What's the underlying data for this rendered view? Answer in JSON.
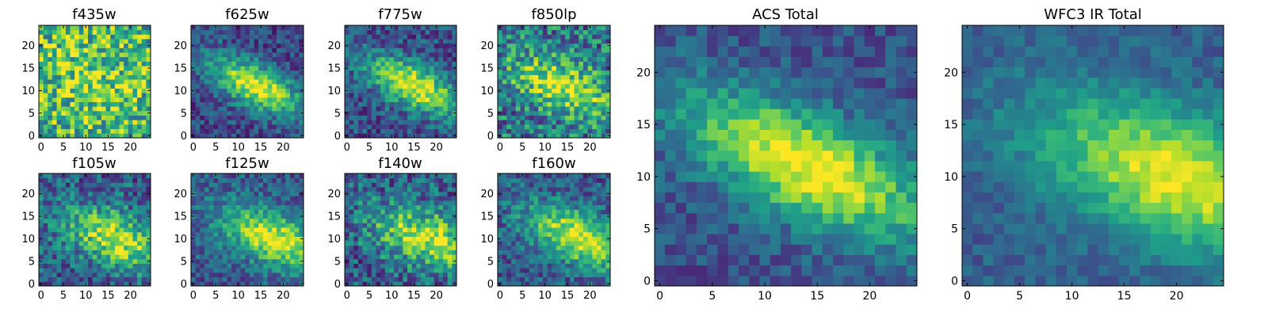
{
  "figure": {
    "colormap": "viridis",
    "colors": {
      "low": "#440154",
      "mid": "#21918c",
      "high": "#fde725",
      "axis": "#000000",
      "background": "#ffffff"
    }
  },
  "chart_data": [
    {
      "type": "heatmap",
      "title": "f435w",
      "grid": false,
      "xlabel": "",
      "ylabel": "",
      "xlim": [
        -0.5,
        24.5
      ],
      "ylim": [
        -0.5,
        24.5
      ],
      "xticks": [
        0,
        5,
        10,
        15,
        20
      ],
      "yticks": [
        0,
        5,
        10,
        15,
        20
      ],
      "xtick_labels": [
        "0",
        "5",
        "10",
        "15",
        "20"
      ],
      "ytick_labels": [
        "0",
        "5",
        "10",
        "15",
        "20"
      ],
      "grid_size": [
        25,
        25
      ],
      "value_range": [
        0,
        1
      ],
      "model": {
        "peak": [
          12,
          12
        ],
        "sigma_major": 9.0,
        "sigma_minor": 7.0,
        "angle_deg": -15,
        "base": 0.62,
        "amplitude": 0.18,
        "noise": 0.34,
        "seed": 11
      },
      "values": []
    },
    {
      "type": "heatmap",
      "title": "f625w",
      "grid": false,
      "xlabel": "",
      "ylabel": "",
      "xlim": [
        -0.5,
        24.5
      ],
      "ylim": [
        -0.5,
        24.5
      ],
      "xticks": [
        0,
        5,
        10,
        15,
        20
      ],
      "yticks": [
        0,
        5,
        10,
        15,
        20
      ],
      "xtick_labels": [
        "0",
        "5",
        "10",
        "15",
        "20"
      ],
      "ytick_labels": [
        "0",
        "5",
        "10",
        "15",
        "20"
      ],
      "grid_size": [
        25,
        25
      ],
      "value_range": [
        0,
        1
      ],
      "model": {
        "peak": [
          14,
          11
        ],
        "sigma_major": 8.0,
        "sigma_minor": 3.2,
        "angle_deg": -26,
        "base": 0.22,
        "amplitude": 0.75,
        "noise": 0.18,
        "seed": 23
      },
      "values": []
    },
    {
      "type": "heatmap",
      "title": "f775w",
      "grid": false,
      "xlabel": "",
      "ylabel": "",
      "xlim": [
        -0.5,
        24.5
      ],
      "ylim": [
        -0.5,
        24.5
      ],
      "xticks": [
        0,
        5,
        10,
        15,
        20
      ],
      "yticks": [
        0,
        5,
        10,
        15,
        20
      ],
      "xtick_labels": [
        "0",
        "5",
        "10",
        "15",
        "20"
      ],
      "ytick_labels": [
        "0",
        "5",
        "10",
        "15",
        "20"
      ],
      "grid_size": [
        25,
        25
      ],
      "value_range": [
        0,
        1
      ],
      "model": {
        "peak": [
          15,
          11
        ],
        "sigma_major": 8.0,
        "sigma_minor": 3.2,
        "angle_deg": -26,
        "base": 0.25,
        "amplitude": 0.72,
        "noise": 0.2,
        "seed": 37
      },
      "values": []
    },
    {
      "type": "heatmap",
      "title": "f850lp",
      "grid": false,
      "xlabel": "",
      "ylabel": "",
      "xlim": [
        -0.5,
        24.5
      ],
      "ylim": [
        -0.5,
        24.5
      ],
      "xticks": [
        0,
        5,
        10,
        15,
        20
      ],
      "yticks": [
        0,
        5,
        10,
        15,
        20
      ],
      "xtick_labels": [
        "0",
        "5",
        "10",
        "15",
        "20"
      ],
      "ytick_labels": [
        "0",
        "5",
        "10",
        "15",
        "20"
      ],
      "grid_size": [
        25,
        25
      ],
      "value_range": [
        0,
        1
      ],
      "model": {
        "peak": [
          14,
          11
        ],
        "sigma_major": 8.0,
        "sigma_minor": 3.6,
        "angle_deg": -22,
        "base": 0.4,
        "amplitude": 0.55,
        "noise": 0.3,
        "seed": 41
      },
      "values": []
    },
    {
      "type": "heatmap",
      "title": "f105w",
      "grid": false,
      "xlabel": "",
      "ylabel": "",
      "xlim": [
        -0.5,
        24.5
      ],
      "ylim": [
        -0.5,
        24.5
      ],
      "xticks": [
        0,
        5,
        10,
        15,
        20
      ],
      "yticks": [
        0,
        5,
        10,
        15,
        20
      ],
      "xtick_labels": [
        "0",
        "5",
        "10",
        "15",
        "20"
      ],
      "ytick_labels": [
        "0",
        "5",
        "10",
        "15",
        "20"
      ],
      "grid_size": [
        25,
        25
      ],
      "value_range": [
        0,
        1
      ],
      "model": {
        "peak": [
          17,
          10
        ],
        "sigma_major": 8.5,
        "sigma_minor": 4.0,
        "angle_deg": -20,
        "base": 0.3,
        "amplitude": 0.62,
        "noise": 0.24,
        "seed": 53
      },
      "values": []
    },
    {
      "type": "heatmap",
      "title": "f125w",
      "grid": false,
      "xlabel": "",
      "ylabel": "",
      "xlim": [
        -0.5,
        24.5
      ],
      "ylim": [
        -0.5,
        24.5
      ],
      "xticks": [
        0,
        5,
        10,
        15,
        20
      ],
      "yticks": [
        0,
        5,
        10,
        15,
        20
      ],
      "xtick_labels": [
        "0",
        "5",
        "10",
        "15",
        "20"
      ],
      "ytick_labels": [
        "0",
        "5",
        "10",
        "15",
        "20"
      ],
      "grid_size": [
        25,
        25
      ],
      "value_range": [
        0,
        1
      ],
      "model": {
        "peak": [
          18,
          10
        ],
        "sigma_major": 9.0,
        "sigma_minor": 3.8,
        "angle_deg": -22,
        "base": 0.28,
        "amplitude": 0.68,
        "noise": 0.18,
        "seed": 67
      },
      "values": []
    },
    {
      "type": "heatmap",
      "title": "f140w",
      "grid": false,
      "xlabel": "",
      "ylabel": "",
      "xlim": [
        -0.5,
        24.5
      ],
      "ylim": [
        -0.5,
        24.5
      ],
      "xticks": [
        0,
        5,
        10,
        15,
        20
      ],
      "yticks": [
        0,
        5,
        10,
        15,
        20
      ],
      "xtick_labels": [
        "0",
        "5",
        "10",
        "15",
        "20"
      ],
      "ytick_labels": [
        "0",
        "5",
        "10",
        "15",
        "20"
      ],
      "grid_size": [
        25,
        25
      ],
      "value_range": [
        0,
        1
      ],
      "model": {
        "peak": [
          18,
          10
        ],
        "sigma_major": 9.0,
        "sigma_minor": 4.0,
        "angle_deg": -18,
        "base": 0.3,
        "amplitude": 0.62,
        "noise": 0.26,
        "seed": 79
      },
      "values": []
    },
    {
      "type": "heatmap",
      "title": "f160w",
      "grid": false,
      "xlabel": "",
      "ylabel": "",
      "xlim": [
        -0.5,
        24.5
      ],
      "ylim": [
        -0.5,
        24.5
      ],
      "xticks": [
        0,
        5,
        10,
        15,
        20
      ],
      "yticks": [
        0,
        5,
        10,
        15,
        20
      ],
      "xtick_labels": [
        "0",
        "5",
        "10",
        "15",
        "20"
      ],
      "ytick_labels": [
        "0",
        "5",
        "10",
        "15",
        "20"
      ],
      "grid_size": [
        25,
        25
      ],
      "value_range": [
        0,
        1
      ],
      "model": {
        "peak": [
          18,
          10
        ],
        "sigma_major": 9.0,
        "sigma_minor": 3.8,
        "angle_deg": -24,
        "base": 0.28,
        "amplitude": 0.7,
        "noise": 0.2,
        "seed": 83
      },
      "values": []
    },
    {
      "type": "heatmap",
      "title": "ACS Total",
      "grid": false,
      "xlabel": "",
      "ylabel": "",
      "xlim": [
        -0.5,
        24.5
      ],
      "ylim": [
        -0.5,
        24.5
      ],
      "xticks": [
        0,
        5,
        10,
        15,
        20
      ],
      "yticks": [
        0,
        5,
        10,
        15,
        20
      ],
      "xtick_labels": [
        "0",
        "5",
        "10",
        "15",
        "20"
      ],
      "ytick_labels": [
        "0",
        "5",
        "10",
        "15",
        "20"
      ],
      "grid_size": [
        25,
        25
      ],
      "value_range": [
        0,
        1
      ],
      "model": {
        "peak": [
          14,
          11
        ],
        "sigma_major": 9.0,
        "sigma_minor": 3.4,
        "angle_deg": -25,
        "base": 0.25,
        "amplitude": 0.75,
        "noise": 0.13,
        "seed": 97
      },
      "values": []
    },
    {
      "type": "heatmap",
      "title": "WFC3 IR Total",
      "grid": false,
      "xlabel": "",
      "ylabel": "",
      "xlim": [
        -0.5,
        24.5
      ],
      "ylim": [
        -0.5,
        24.5
      ],
      "xticks": [
        0,
        5,
        10,
        15,
        20
      ],
      "yticks": [
        0,
        5,
        10,
        15,
        20
      ],
      "xtick_labels": [
        "0",
        "5",
        "10",
        "15",
        "20"
      ],
      "ytick_labels": [
        "0",
        "5",
        "10",
        "15",
        "20"
      ],
      "grid_size": [
        25,
        25
      ],
      "value_range": [
        0,
        1
      ],
      "model": {
        "peak": [
          20,
          10
        ],
        "sigma_major": 9.5,
        "sigma_minor": 4.2,
        "angle_deg": -20,
        "base": 0.3,
        "amplitude": 0.68,
        "noise": 0.1,
        "seed": 101
      },
      "values": []
    }
  ]
}
